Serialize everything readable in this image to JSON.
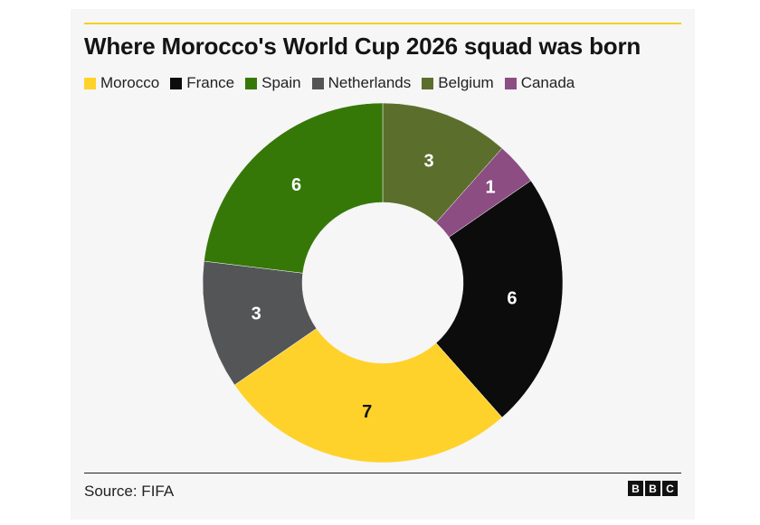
{
  "chart_data": {
    "type": "pie",
    "donut": true,
    "title": "Where Morocco's World Cup 2026 squad was born",
    "categories": [
      "Morocco",
      "France",
      "Spain",
      "Netherlands",
      "Belgium",
      "Canada"
    ],
    "slices": [
      {
        "label": "Belgium",
        "value": 3,
        "color": "#5c6e2c",
        "text_color": "#ffffff"
      },
      {
        "label": "Canada",
        "value": 1,
        "color": "#8c4d83",
        "text_color": "#ffffff"
      },
      {
        "label": "France",
        "value": 6,
        "color": "#0c0c0c",
        "text_color": "#ffffff"
      },
      {
        "label": "Morocco",
        "value": 7,
        "color": "#fed22a",
        "text_color": "#141414"
      },
      {
        "label": "Netherlands",
        "value": 3,
        "color": "#545557",
        "text_color": "#ffffff"
      },
      {
        "label": "Spain",
        "value": 6,
        "color": "#357807",
        "text_color": "#ffffff"
      }
    ],
    "legend": [
      {
        "label": "Morocco",
        "color": "#fed22a"
      },
      {
        "label": "France",
        "color": "#0c0c0c"
      },
      {
        "label": "Spain",
        "color": "#357807"
      },
      {
        "label": "Netherlands",
        "color": "#545557"
      },
      {
        "label": "Belgium",
        "color": "#5c6e2c"
      },
      {
        "label": "Canada",
        "color": "#8c4d83"
      }
    ],
    "legend_position": "top-left"
  },
  "source": "Source: FIFA",
  "logo": {
    "letters": [
      "B",
      "B",
      "C"
    ]
  },
  "accent_color": "#f4d020"
}
